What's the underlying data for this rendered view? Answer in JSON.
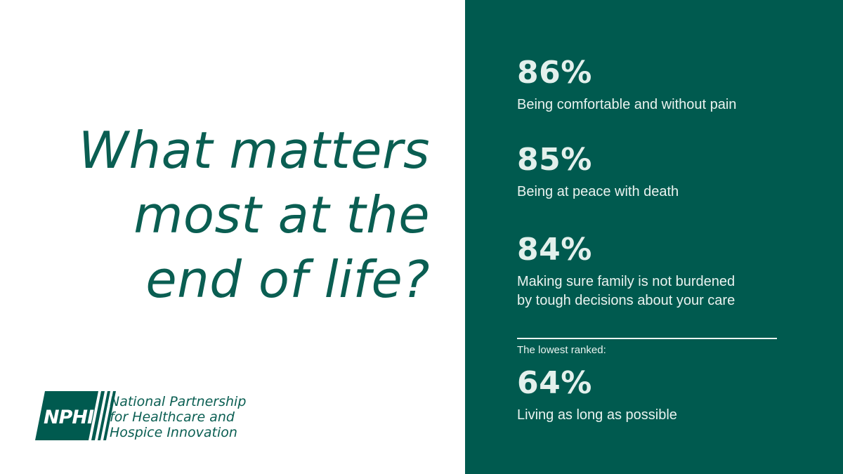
{
  "headline": {
    "lines": [
      "What matters",
      "most at the",
      "end of life?"
    ]
  },
  "logo": {
    "abbr": "NPHI",
    "name_lines": [
      "National Partnership",
      "for Healthcare and",
      "Hospice Innovation"
    ]
  },
  "stats": [
    {
      "value": "86%",
      "lines": [
        "Being comfortable and without pain"
      ]
    },
    {
      "value": "85%",
      "lines": [
        "Being at peace with death"
      ]
    },
    {
      "value": "84%",
      "lines": [
        "Making sure family is not burdened",
        "by tough decisions about your care"
      ]
    }
  ],
  "lowest": {
    "label": "The lowest ranked:",
    "value": "64%",
    "lines": [
      "Living as long as possible"
    ]
  },
  "colors": {
    "brand_green": "#005a4f",
    "headline_green": "#0a5e52",
    "light_text": "#eaf3f0"
  }
}
